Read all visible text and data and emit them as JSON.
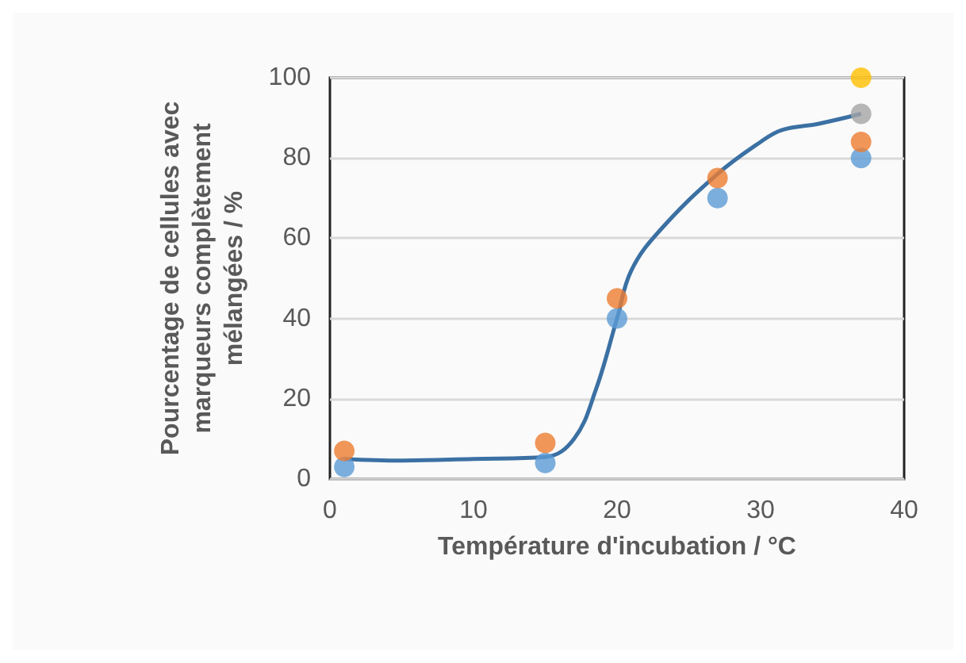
{
  "chart_data": {
    "type": "scatter",
    "xlabel": "Température d'incubation / °C",
    "ylabel": "Pourcentage de cellules avec\nmarqueurs complètement\nmélangées / %",
    "xlim": [
      0,
      40
    ],
    "xticks": [
      0,
      10,
      20,
      30,
      40
    ],
    "ylim": [
      0,
      100
    ],
    "yticks": [
      0,
      20,
      40,
      60,
      80,
      100
    ],
    "grid": "y",
    "marker": "circle",
    "series": [
      {
        "type": "line",
        "color": "#3b70a3",
        "marker": "none",
        "x": [
          1,
          5,
          10,
          15,
          17,
          18.5,
          20,
          21,
          23,
          27,
          30,
          31.5,
          34,
          37
        ],
        "values": [
          5,
          4.6,
          5,
          5.5,
          10,
          22,
          40,
          52,
          62,
          76,
          84,
          87,
          88.5,
          91
        ]
      },
      {
        "color": "#5b9bd5",
        "x": [
          1,
          15,
          20,
          27,
          37
        ],
        "values": [
          3,
          4,
          40,
          70,
          80
        ]
      },
      {
        "color": "#ed7d31",
        "x": [
          1,
          15,
          20,
          27,
          37
        ],
        "values": [
          7,
          9,
          45,
          75,
          84
        ]
      },
      {
        "color": "#a5a5a5",
        "x": [
          37
        ],
        "values": [
          91
        ]
      },
      {
        "color": "#ffc000",
        "x": [
          37
        ],
        "values": [
          100
        ]
      }
    ]
  }
}
